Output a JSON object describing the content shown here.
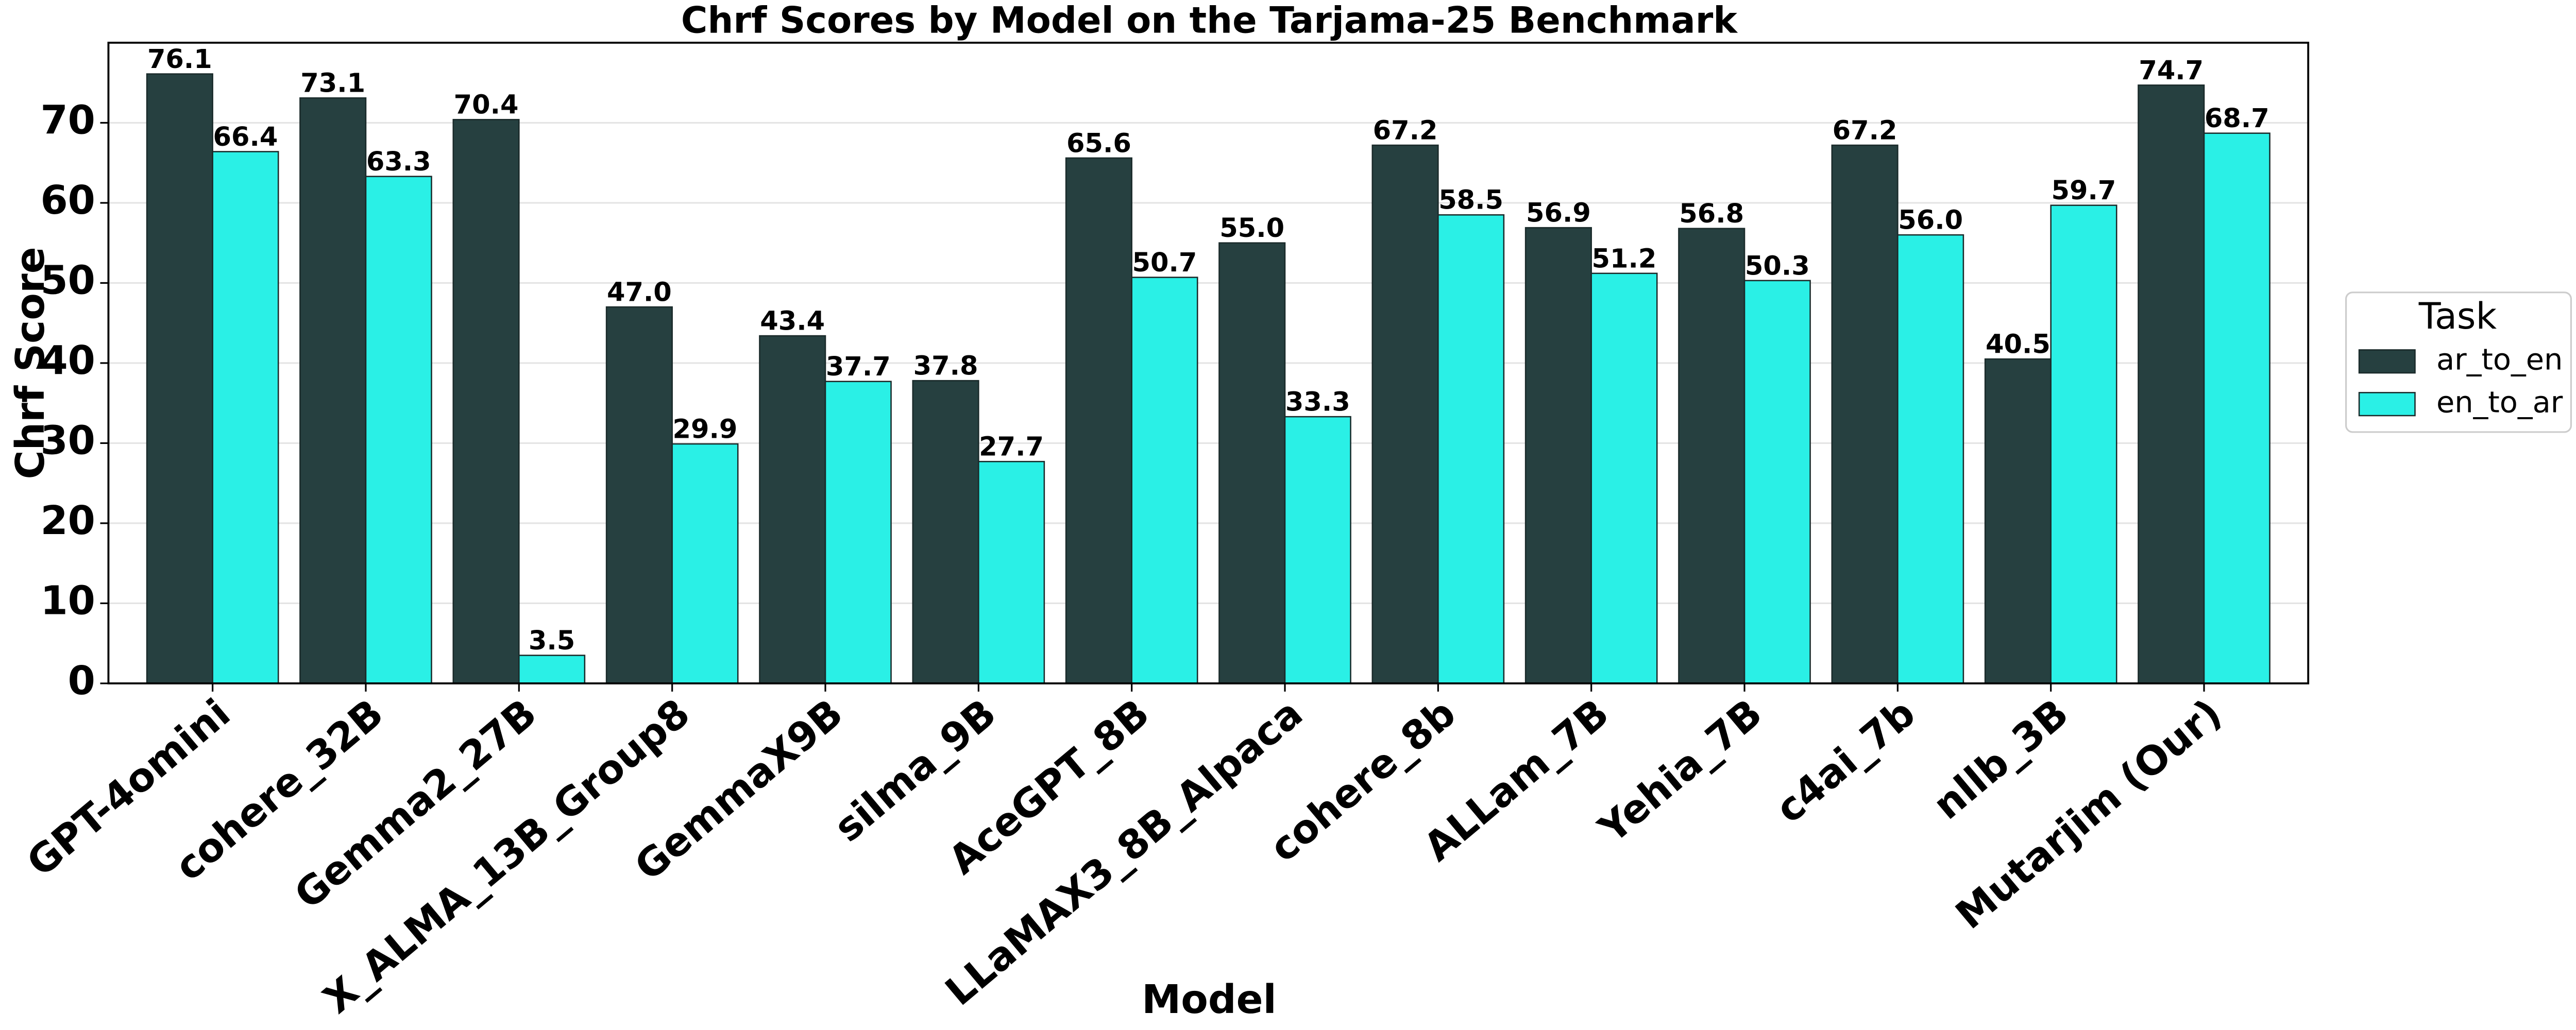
{
  "chart_data": {
    "type": "bar",
    "title": "Chrf Scores by Model on the Tarjama-25 Benchmark",
    "x_label": "Model",
    "y_label": "Chrf Score",
    "categories": [
      "GPT-4omini",
      "cohere_32B",
      "Gemma2_27B",
      "X_ALMA_13B_Group8",
      "GemmaX9B",
      "silma_9B",
      "AceGPT_8B",
      "LLaMAX3_8B_Alpaca",
      "cohere_8b",
      "ALLam_7B",
      "Yehia_7B",
      "c4ai_7b",
      "nllb_3B",
      "Mutarjim (Our)"
    ],
    "series": [
      {
        "name": "ar_to_en",
        "color": "#264040",
        "values": [
          76.1,
          73.1,
          70.4,
          47.0,
          43.4,
          37.8,
          65.6,
          55.0,
          67.2,
          56.9,
          56.8,
          67.2,
          40.5,
          74.7
        ],
        "value_labels": [
          "76.1",
          "73.1",
          "70.4",
          "47.0",
          "43.4",
          "37.8",
          "65.6",
          "55.0",
          "67.2",
          "56.9",
          "56.8",
          "67.2",
          "40.5",
          "74.7"
        ]
      },
      {
        "name": "en_to_ar",
        "color": "#2af0e6",
        "values": [
          66.4,
          63.3,
          3.5,
          29.9,
          37.7,
          27.7,
          50.7,
          33.3,
          58.5,
          51.2,
          50.3,
          56.0,
          59.7,
          68.7
        ],
        "value_labels": [
          "66.4",
          "63.3",
          "3.5",
          "29.9",
          "37.7",
          "27.7",
          "50.7",
          "33.3",
          "58.5",
          "51.2",
          "50.3",
          "56.0",
          "59.7",
          "68.7"
        ]
      }
    ],
    "legend_title": "Task",
    "legend_position": "right",
    "ylim": [
      0,
      80
    ],
    "yticks": [
      0,
      10,
      20,
      30,
      40,
      50,
      60,
      70
    ],
    "grid": true
  }
}
